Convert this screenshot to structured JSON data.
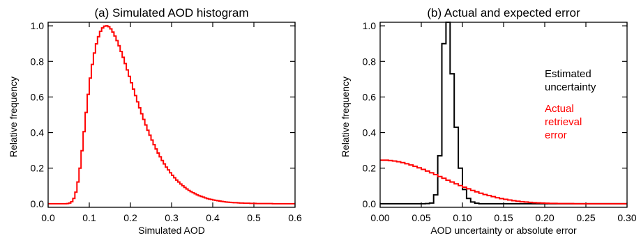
{
  "colors": {
    "axis": "#000000",
    "red": "#ff0000",
    "black": "#000000"
  },
  "chart_data": [
    {
      "type": "line",
      "step": true,
      "title": "(a) Simulated AOD histogram",
      "xlabel": "Simulated AOD",
      "ylabel": "Relative frequency",
      "xlim": [
        0.0,
        0.6
      ],
      "ylim": [
        -0.02,
        1.02
      ],
      "xticks": [
        0.0,
        0.1,
        0.2,
        0.3,
        0.4,
        0.5,
        0.6
      ],
      "xtick_labels": [
        "0.0",
        "0.1",
        "0.2",
        "0.3",
        "0.4",
        "0.5",
        "0.6"
      ],
      "yticks": [
        0.0,
        0.2,
        0.4,
        0.6,
        0.8,
        1.0
      ],
      "ytick_labels": [
        "0.0",
        "0.2",
        "0.4",
        "0.6",
        "0.8",
        "1.0"
      ],
      "series": [
        {
          "color": "red",
          "x": [
            0.0,
            0.005,
            0.01,
            0.015,
            0.02,
            0.025,
            0.03,
            0.035,
            0.04,
            0.045,
            0.05,
            0.055,
            0.06,
            0.065,
            0.07,
            0.075,
            0.08,
            0.085,
            0.09,
            0.095,
            0.1,
            0.105,
            0.11,
            0.115,
            0.12,
            0.125,
            0.13,
            0.135,
            0.14,
            0.145,
            0.15,
            0.155,
            0.16,
            0.165,
            0.17,
            0.175,
            0.18,
            0.185,
            0.19,
            0.195,
            0.2,
            0.205,
            0.21,
            0.215,
            0.22,
            0.225,
            0.23,
            0.235,
            0.24,
            0.245,
            0.25,
            0.255,
            0.26,
            0.265,
            0.27,
            0.275,
            0.28,
            0.285,
            0.29,
            0.295,
            0.3,
            0.305,
            0.31,
            0.315,
            0.32,
            0.325,
            0.33,
            0.335,
            0.34,
            0.345,
            0.35,
            0.355,
            0.36,
            0.365,
            0.37,
            0.375,
            0.38,
            0.385,
            0.39,
            0.395,
            0.4,
            0.405,
            0.41,
            0.415,
            0.42,
            0.425,
            0.43,
            0.435,
            0.44,
            0.445,
            0.45,
            0.455,
            0.46,
            0.465,
            0.47,
            0.475,
            0.48,
            0.485,
            0.49,
            0.495,
            0.5,
            0.505,
            0.51,
            0.515,
            0.52,
            0.525,
            0.53,
            0.535,
            0.54,
            0.545,
            0.55,
            0.555,
            0.56,
            0.565,
            0.57,
            0.575,
            0.58,
            0.585,
            0.59,
            0.595
          ],
          "y": [
            0.0,
            0.0,
            0.0,
            0.0,
            0.0,
            0.0,
            0.0,
            0.0,
            0.0,
            0.001,
            0.004,
            0.012,
            0.03,
            0.065,
            0.122,
            0.2,
            0.298,
            0.405,
            0.513,
            0.615,
            0.706,
            0.783,
            0.847,
            0.899,
            0.939,
            0.969,
            0.988,
            0.998,
            1.0,
            0.995,
            0.983,
            0.965,
            0.943,
            0.917,
            0.888,
            0.856,
            0.823,
            0.788,
            0.752,
            0.716,
            0.68,
            0.644,
            0.608,
            0.573,
            0.539,
            0.506,
            0.474,
            0.443,
            0.413,
            0.385,
            0.358,
            0.332,
            0.308,
            0.285,
            0.264,
            0.243,
            0.224,
            0.206,
            0.19,
            0.174,
            0.16,
            0.146,
            0.133,
            0.122,
            0.111,
            0.101,
            0.092,
            0.083,
            0.075,
            0.068,
            0.062,
            0.056,
            0.05,
            0.045,
            0.041,
            0.037,
            0.033,
            0.029,
            0.026,
            0.024,
            0.021,
            0.019,
            0.017,
            0.015,
            0.013,
            0.012,
            0.01,
            0.009,
            0.008,
            0.007,
            0.006,
            0.006,
            0.005,
            0.004,
            0.004,
            0.003,
            0.003,
            0.003,
            0.002,
            0.002,
            0.002,
            0.001,
            0.001,
            0.001,
            0.001,
            0.001,
            0.001,
            0.001,
            0.001,
            0.0,
            0.0,
            0.0,
            0.0,
            0.0,
            0.0,
            0.0,
            0.0,
            0.0,
            0.0,
            0.0
          ]
        }
      ]
    },
    {
      "type": "line",
      "step": true,
      "title": "(b) Actual and expected error",
      "xlabel": "AOD uncertainty or absolute error",
      "ylabel": "Relative frequency",
      "xlim": [
        0.0,
        0.3
      ],
      "ylim": [
        -0.02,
        1.02
      ],
      "xticks": [
        0.0,
        0.05,
        0.1,
        0.15,
        0.2,
        0.25,
        0.3
      ],
      "xtick_labels": [
        "0.00",
        "0.05",
        "0.10",
        "0.15",
        "0.20",
        "0.25",
        "0.30"
      ],
      "yticks": [
        0.0,
        0.2,
        0.4,
        0.6,
        0.8,
        1.0
      ],
      "ytick_labels": [
        "0.0",
        "0.2",
        "0.4",
        "0.6",
        "0.8",
        "1.0"
      ],
      "legend": {
        "placement": "right",
        "entries": [
          {
            "lines": [
              "Estimated",
              "uncertainty"
            ],
            "color": "black"
          },
          {
            "lines": [
              "Actual",
              "retrieval",
              "error"
            ],
            "color": "red"
          }
        ]
      },
      "series": [
        {
          "color": "black",
          "x": [
            0.0,
            0.05,
            0.055,
            0.06,
            0.065,
            0.07,
            0.075,
            0.08,
            0.085,
            0.09,
            0.095,
            0.1,
            0.105,
            0.11,
            0.115,
            0.12,
            0.125
          ],
          "y": [
            0.0,
            0.0,
            0.001,
            0.004,
            0.05,
            0.27,
            0.9,
            1.02,
            0.73,
            0.43,
            0.2,
            0.08,
            0.03,
            0.01,
            0.003,
            0.0,
            0.0
          ]
        },
        {
          "color": "red",
          "x": [
            0.0,
            0.005,
            0.01,
            0.015,
            0.02,
            0.025,
            0.03,
            0.035,
            0.04,
            0.045,
            0.05,
            0.055,
            0.06,
            0.065,
            0.07,
            0.075,
            0.08,
            0.085,
            0.09,
            0.095,
            0.1,
            0.105,
            0.11,
            0.115,
            0.12,
            0.125,
            0.13,
            0.135,
            0.14,
            0.145,
            0.15,
            0.155,
            0.16,
            0.165,
            0.17,
            0.175,
            0.18,
            0.185,
            0.19,
            0.195,
            0.2,
            0.205,
            0.21,
            0.215,
            0.22,
            0.225,
            0.23,
            0.235,
            0.24,
            0.245,
            0.25,
            0.255,
            0.26,
            0.265,
            0.27,
            0.275,
            0.28,
            0.285,
            0.29,
            0.295
          ],
          "y": [
            0.245,
            0.245,
            0.243,
            0.24,
            0.236,
            0.231,
            0.225,
            0.218,
            0.21,
            0.202,
            0.193,
            0.184,
            0.174,
            0.164,
            0.153,
            0.143,
            0.132,
            0.122,
            0.112,
            0.102,
            0.093,
            0.084,
            0.075,
            0.067,
            0.059,
            0.052,
            0.046,
            0.04,
            0.034,
            0.029,
            0.025,
            0.021,
            0.017,
            0.014,
            0.012,
            0.01,
            0.008,
            0.006,
            0.005,
            0.004,
            0.003,
            0.002,
            0.002,
            0.001,
            0.001,
            0.001,
            0.001,
            0.0,
            0.0,
            0.0,
            0.0,
            0.0,
            0.0,
            0.0,
            0.0,
            0.0,
            0.0,
            0.0,
            0.0,
            0.0
          ]
        }
      ]
    }
  ]
}
